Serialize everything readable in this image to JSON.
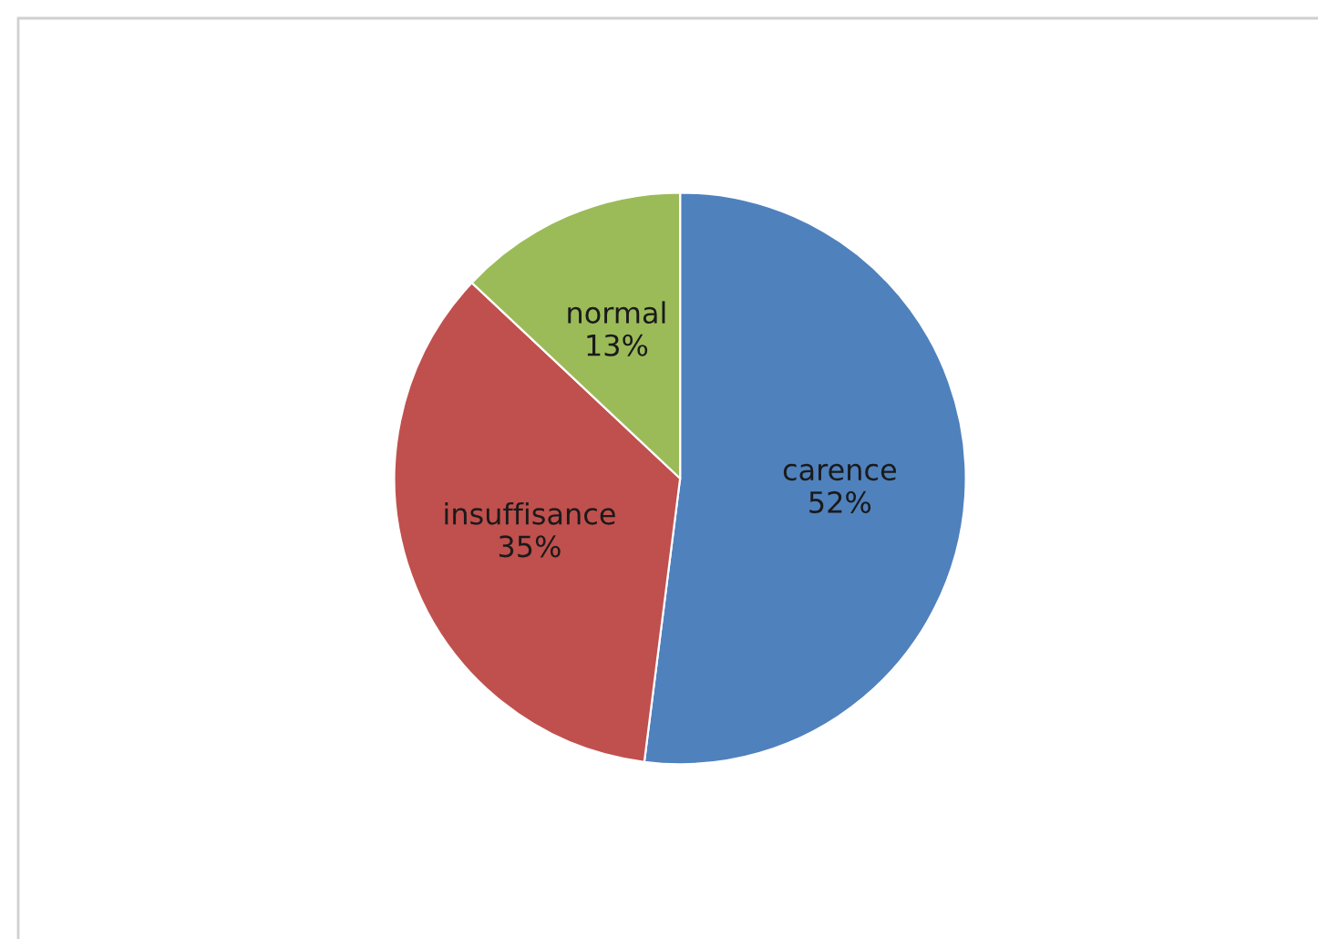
{
  "chart_data": {
    "type": "pie",
    "categories": [
      "carence",
      "insuffisance",
      "normal"
    ],
    "values": [
      52,
      35,
      13
    ],
    "value_labels": [
      "52%",
      "35%",
      "13%"
    ],
    "colors": [
      "#4f81bd",
      "#c0504d",
      "#9bbb59"
    ],
    "legend": false
  }
}
